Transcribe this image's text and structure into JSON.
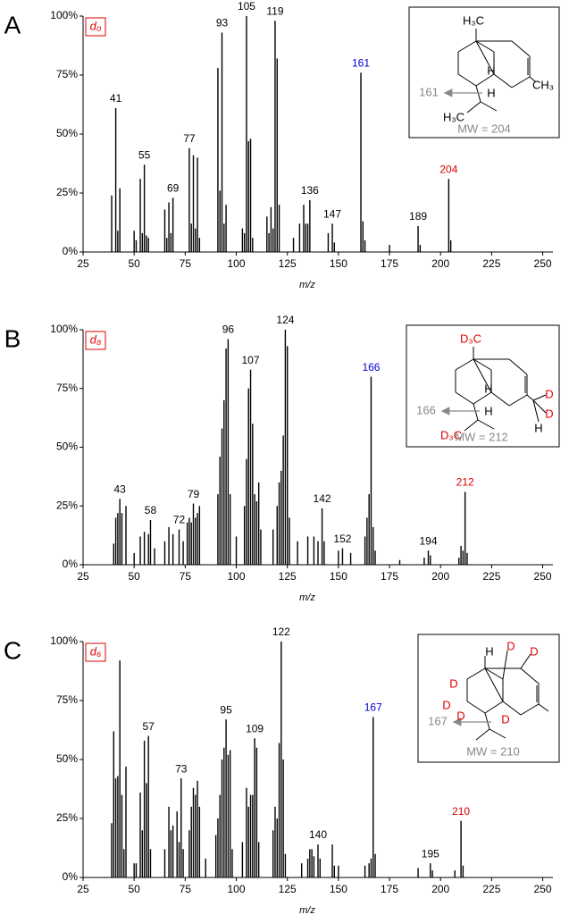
{
  "chart_data": [
    {
      "type": "bar",
      "panel": "A",
      "tag": "d₀",
      "xlabel": "m/z",
      "color": "#000000",
      "x": [
        39,
        41,
        42,
        43,
        50,
        51,
        53,
        54,
        55,
        56,
        57,
        65,
        66,
        67,
        68,
        69,
        77,
        78,
        79,
        80,
        81,
        82,
        91,
        92,
        93,
        94,
        95,
        103,
        104,
        105,
        106,
        107,
        108,
        115,
        116,
        117,
        118,
        119,
        120,
        121,
        128,
        131,
        133,
        134,
        135,
        136,
        145,
        147,
        148,
        161,
        162,
        163,
        175,
        189,
        190,
        204,
        205
      ],
      "values": [
        24,
        61,
        9,
        27,
        9,
        5,
        31,
        8,
        37,
        7,
        6,
        18,
        6,
        21,
        8,
        23,
        44,
        12,
        41,
        10,
        40,
        6,
        78,
        26,
        93,
        12,
        20,
        10,
        8,
        100,
        47,
        48,
        6,
        15,
        8,
        19,
        10,
        98,
        82,
        20,
        6,
        12,
        20,
        12,
        12,
        22,
        8,
        12,
        4,
        76,
        13,
        5,
        3,
        11,
        3,
        31,
        5
      ],
      "xlim": [
        25,
        255
      ],
      "xticks": [
        25,
        50,
        75,
        100,
        125,
        150,
        175,
        200,
        225,
        250
      ],
      "ylim": [
        0,
        100
      ],
      "yticks": [
        {
          "value": 0,
          "label": "0%"
        },
        {
          "value": 25,
          "label": "25%"
        },
        {
          "value": 50,
          "label": "50%"
        },
        {
          "value": 75,
          "label": "75%"
        },
        {
          "value": 100,
          "label": "100%"
        }
      ],
      "peak_labels": [
        {
          "x": 41,
          "color": "#000000"
        },
        {
          "x": 55,
          "color": "#000000"
        },
        {
          "x": 69,
          "color": "#000000"
        },
        {
          "x": 77,
          "color": "#000000"
        },
        {
          "x": 93,
          "color": "#000000"
        },
        {
          "x": 105,
          "color": "#000000"
        },
        {
          "x": 119,
          "color": "#000000"
        },
        {
          "x": 136,
          "color": "#000000"
        },
        {
          "x": 147,
          "color": "#000000"
        },
        {
          "x": 161,
          "color": "#0000cc"
        },
        {
          "x": 189,
          "color": "#000000"
        },
        {
          "x": 204,
          "color": "#dd0000"
        }
      ],
      "inset": {
        "labels": [
          {
            "text": "H₃C",
            "color": "#000000"
          },
          {
            "text": "H",
            "color": "#000000"
          },
          {
            "text": "CH₃",
            "color": "#000000"
          },
          {
            "text": "161",
            "color": "#888888"
          },
          {
            "text": "H",
            "color": "#000000"
          },
          {
            "text": "H₃C",
            "color": "#000000"
          },
          {
            "text": "MW = 204",
            "color": "#888888"
          }
        ]
      }
    },
    {
      "type": "bar",
      "panel": "B",
      "tag": "d₈",
      "xlabel": "m/z",
      "color": "#000000",
      "x": [
        40,
        41,
        42,
        43,
        44,
        46,
        50,
        53,
        55,
        57,
        58,
        60,
        65,
        67,
        69,
        72,
        74,
        76,
        77,
        78,
        79,
        80,
        81,
        82,
        91,
        92,
        93,
        94,
        95,
        96,
        97,
        100,
        104,
        105,
        106,
        107,
        108,
        109,
        110,
        111,
        112,
        118,
        120,
        121,
        122,
        123,
        124,
        125,
        126,
        130,
        135,
        138,
        140,
        142,
        143,
        150,
        152,
        156,
        163,
        164,
        165,
        166,
        167,
        168,
        180,
        192,
        194,
        195,
        209,
        210,
        211,
        212,
        213
      ],
      "values": [
        9,
        20,
        22,
        28,
        22,
        25,
        5,
        12,
        14,
        13,
        19,
        7,
        10,
        16,
        13,
        15,
        10,
        18,
        20,
        18,
        26,
        20,
        22,
        25,
        30,
        46,
        58,
        70,
        92,
        96,
        30,
        12,
        25,
        45,
        75,
        83,
        60,
        30,
        27,
        35,
        15,
        15,
        25,
        35,
        40,
        55,
        100,
        93,
        20,
        10,
        12,
        12,
        10,
        24,
        10,
        6,
        7,
        5,
        12,
        20,
        30,
        80,
        16,
        6,
        2,
        3,
        6,
        4,
        3,
        8,
        6,
        31,
        5
      ],
      "xlim": [
        25,
        255
      ],
      "xticks": [
        25,
        50,
        75,
        100,
        125,
        150,
        175,
        200,
        225,
        250
      ],
      "ylim": [
        0,
        100
      ],
      "yticks": [
        {
          "value": 0,
          "label": "0%"
        },
        {
          "value": 25,
          "label": "25%"
        },
        {
          "value": 50,
          "label": "50%"
        },
        {
          "value": 75,
          "label": "75%"
        },
        {
          "value": 100,
          "label": "100%"
        }
      ],
      "peak_labels": [
        {
          "x": 43,
          "color": "#000000"
        },
        {
          "x": 58,
          "color": "#000000"
        },
        {
          "x": 72,
          "color": "#000000"
        },
        {
          "x": 79,
          "color": "#000000"
        },
        {
          "x": 96,
          "color": "#000000"
        },
        {
          "x": 107,
          "color": "#000000"
        },
        {
          "x": 124,
          "color": "#000000"
        },
        {
          "x": 142,
          "color": "#000000"
        },
        {
          "x": 152,
          "color": "#000000"
        },
        {
          "x": 166,
          "color": "#0000cc"
        },
        {
          "x": 194,
          "color": "#000000"
        },
        {
          "x": 212,
          "color": "#dd0000"
        }
      ],
      "inset": {
        "labels": [
          {
            "text": "D₃C",
            "color": "#dd0000"
          },
          {
            "text": "H",
            "color": "#000000"
          },
          {
            "text": "D",
            "color": "#dd0000"
          },
          {
            "text": "D",
            "color": "#dd0000"
          },
          {
            "text": "H",
            "color": "#000000"
          },
          {
            "text": "166",
            "color": "#888888"
          },
          {
            "text": "H",
            "color": "#000000"
          },
          {
            "text": "D₃C",
            "color": "#dd0000"
          },
          {
            "text": "MW = 212",
            "color": "#888888"
          }
        ]
      }
    },
    {
      "type": "bar",
      "panel": "C",
      "tag": "d₆",
      "xlabel": "m/z",
      "color": "#000000",
      "x": [
        39,
        40,
        41,
        42,
        43,
        44,
        45,
        46,
        50,
        51,
        53,
        54,
        55,
        56,
        57,
        58,
        65,
        67,
        68,
        69,
        71,
        72,
        73,
        74,
        77,
        78,
        79,
        80,
        81,
        82,
        85,
        90,
        91,
        92,
        93,
        94,
        95,
        96,
        97,
        98,
        103,
        105,
        106,
        107,
        108,
        109,
        110,
        111,
        118,
        119,
        120,
        121,
        122,
        123,
        124,
        132,
        135,
        136,
        137,
        138,
        140,
        141,
        147,
        148,
        150,
        163,
        165,
        166,
        167,
        168,
        189,
        195,
        196,
        207,
        210,
        211
      ],
      "values": [
        23,
        62,
        42,
        43,
        92,
        35,
        12,
        47,
        6,
        6,
        36,
        20,
        58,
        40,
        60,
        12,
        12,
        30,
        20,
        22,
        28,
        15,
        42,
        12,
        20,
        30,
        38,
        35,
        41,
        30,
        8,
        18,
        25,
        35,
        50,
        55,
        67,
        52,
        54,
        12,
        15,
        38,
        30,
        35,
        35,
        59,
        55,
        15,
        20,
        30,
        25,
        57,
        100,
        50,
        10,
        6,
        8,
        12,
        12,
        9,
        14,
        8,
        14,
        5,
        5,
        5,
        6,
        8,
        68,
        10,
        4,
        6,
        3,
        3,
        24,
        5
      ],
      "xlim": [
        25,
        255
      ],
      "xticks": [
        25,
        50,
        75,
        100,
        125,
        150,
        175,
        200,
        225,
        250
      ],
      "ylim": [
        0,
        100
      ],
      "yticks": [
        {
          "value": 0,
          "label": "0%"
        },
        {
          "value": 25,
          "label": "25%"
        },
        {
          "value": 50,
          "label": "50%"
        },
        {
          "value": 75,
          "label": "75%"
        },
        {
          "value": 100,
          "label": "100%"
        }
      ],
      "peak_labels": [
        {
          "x": 57,
          "color": "#000000"
        },
        {
          "x": 73,
          "color": "#000000"
        },
        {
          "x": 95,
          "color": "#000000"
        },
        {
          "x": 109,
          "color": "#000000"
        },
        {
          "x": 122,
          "color": "#000000"
        },
        {
          "x": 140,
          "color": "#000000"
        },
        {
          "x": 167,
          "color": "#0000cc"
        },
        {
          "x": 195,
          "color": "#000000"
        },
        {
          "x": 210,
          "color": "#dd0000"
        }
      ],
      "inset": {
        "labels": [
          {
            "text": "H",
            "color": "#000000"
          },
          {
            "text": "D",
            "color": "#dd0000"
          },
          {
            "text": "D",
            "color": "#dd0000"
          },
          {
            "text": "D",
            "color": "#dd0000"
          },
          {
            "text": "D",
            "color": "#dd0000"
          },
          {
            "text": "D",
            "color": "#dd0000"
          },
          {
            "text": "D",
            "color": "#dd0000"
          },
          {
            "text": "167",
            "color": "#888888"
          },
          {
            "text": "MW = 210",
            "color": "#888888"
          }
        ]
      }
    }
  ]
}
